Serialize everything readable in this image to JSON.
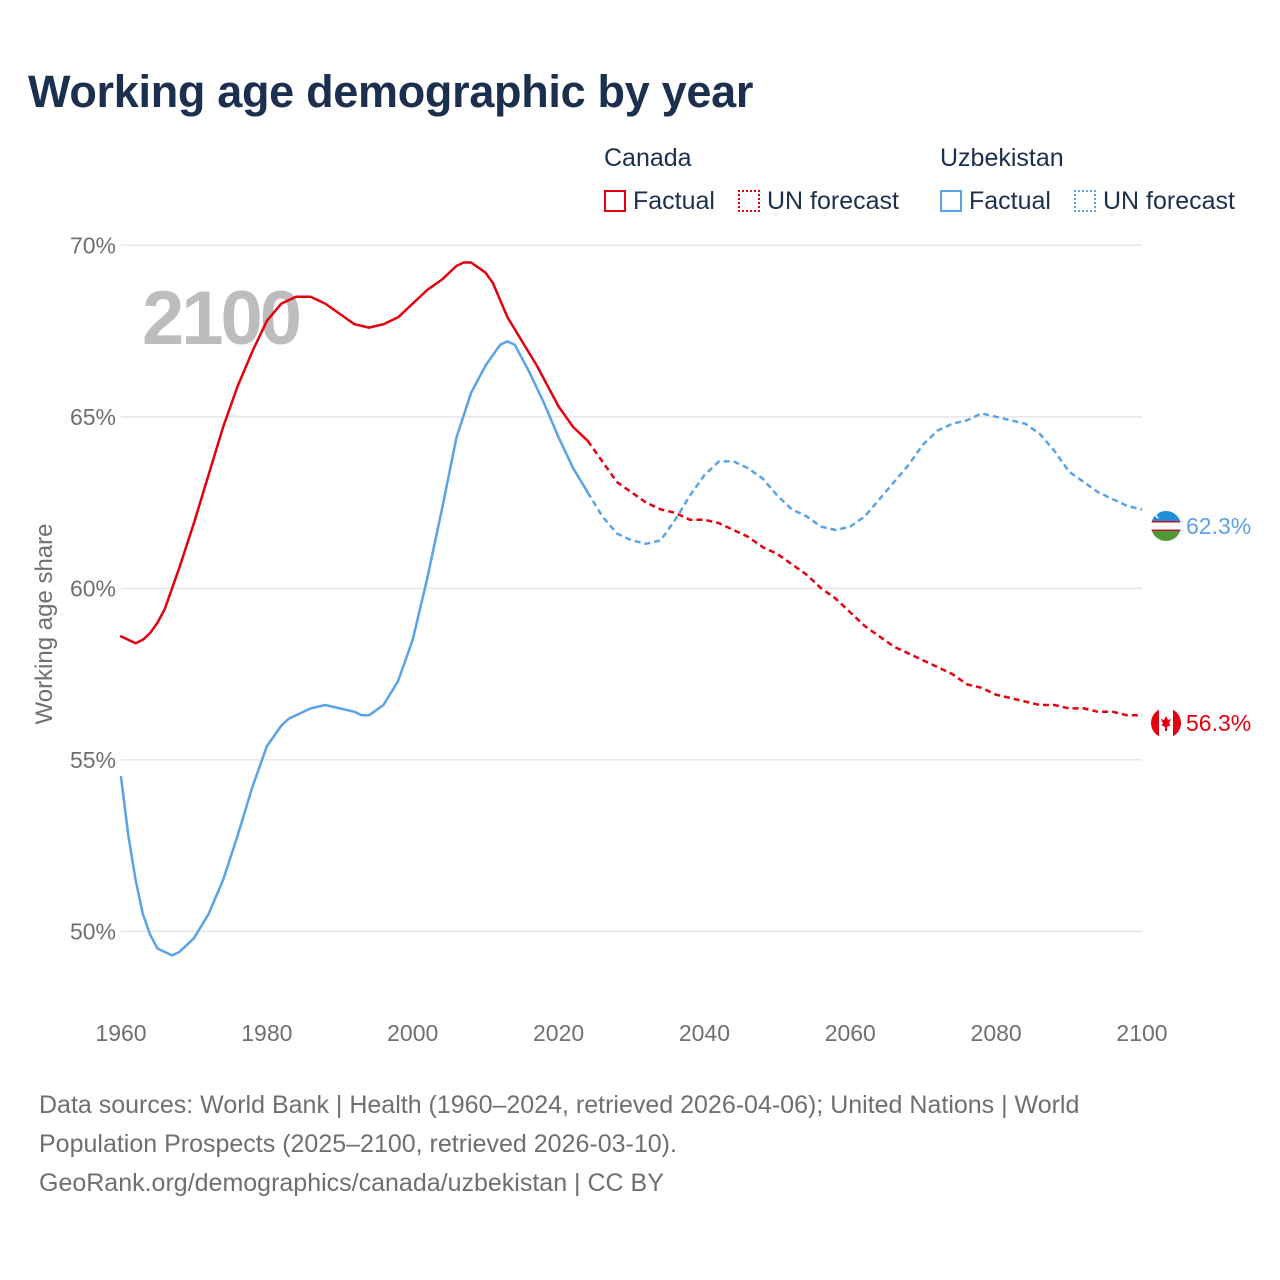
{
  "title": "Working age demographic by year",
  "legend": {
    "series": [
      {
        "country": "Canada",
        "color": "#e3000f",
        "factual_label": "Factual",
        "forecast_label": "UN forecast"
      },
      {
        "country": "Uzbekistan",
        "color": "#5ba3e6",
        "factual_label": "Factual",
        "forecast_label": "UN forecast"
      }
    ]
  },
  "year_overlay": "2100",
  "end_labels": {
    "canada": "56.3%",
    "uzbekistan": "62.3%"
  },
  "footer": {
    "line1": "Data sources: World Bank | Health (1960–2024, retrieved 2026-04-06); United Nations | World",
    "line2": "Population Prospects (2025–2100, retrieved 2026-03-10).",
    "line3": "GeoRank.org/demographics/canada/uzbekistan | CC BY"
  },
  "chart_data": {
    "type": "line",
    "title": "Working age demographic by year",
    "xlabel": "",
    "ylabel": "Working age share",
    "xlim": [
      1960,
      2100
    ],
    "ylim": [
      48,
      71
    ],
    "x_ticks": [
      1960,
      1980,
      2000,
      2020,
      2040,
      2060,
      2080,
      2100
    ],
    "y_ticks": [
      50,
      55,
      60,
      65,
      70
    ],
    "y_tick_labels": [
      "50%",
      "55%",
      "60%",
      "65%",
      "70%"
    ],
    "factual_end_year": 2024,
    "series": [
      {
        "name": "Canada",
        "color": "#e3000f",
        "x": [
          1960,
          1962,
          1963,
          1964,
          1965,
          1966,
          1968,
          1970,
          1972,
          1974,
          1976,
          1978,
          1980,
          1982,
          1984,
          1986,
          1988,
          1990,
          1992,
          1994,
          1996,
          1998,
          2000,
          2002,
          2004,
          2006,
          2007,
          2008,
          2010,
          2011,
          2013,
          2015,
          2017,
          2020,
          2022,
          2024,
          2026,
          2028,
          2030,
          2032,
          2034,
          2036,
          2038,
          2040,
          2042,
          2044,
          2046,
          2048,
          2050,
          2052,
          2054,
          2056,
          2058,
          2060,
          2062,
          2064,
          2066,
          2068,
          2070,
          2072,
          2074,
          2076,
          2078,
          2080,
          2082,
          2084,
          2086,
          2088,
          2090,
          2092,
          2094,
          2096,
          2098,
          2100
        ],
        "values": [
          58.6,
          58.4,
          58.5,
          58.7,
          59.0,
          59.4,
          60.6,
          61.9,
          63.3,
          64.7,
          65.9,
          66.9,
          67.8,
          68.3,
          68.5,
          68.5,
          68.3,
          68.0,
          67.7,
          67.6,
          67.7,
          67.9,
          68.3,
          68.7,
          69.0,
          69.4,
          69.5,
          69.5,
          69.2,
          68.9,
          67.9,
          67.2,
          66.5,
          65.3,
          64.7,
          64.3,
          63.7,
          63.1,
          62.8,
          62.5,
          62.3,
          62.2,
          62.0,
          62.0,
          61.9,
          61.7,
          61.5,
          61.2,
          61.0,
          60.7,
          60.4,
          60.0,
          59.7,
          59.3,
          58.9,
          58.6,
          58.3,
          58.1,
          57.9,
          57.7,
          57.5,
          57.2,
          57.1,
          56.9,
          56.8,
          56.7,
          56.6,
          56.6,
          56.5,
          56.5,
          56.4,
          56.4,
          56.3,
          56.3
        ]
      },
      {
        "name": "Uzbekistan",
        "color": "#5ba3e6",
        "x": [
          1960,
          1961,
          1962,
          1963,
          1964,
          1965,
          1966,
          1967,
          1968,
          1970,
          1972,
          1974,
          1976,
          1978,
          1980,
          1982,
          1983,
          1986,
          1988,
          1990,
          1992,
          1993,
          1994,
          1996,
          1998,
          2000,
          2002,
          2004,
          2006,
          2008,
          2010,
          2012,
          2013,
          2014,
          2016,
          2018,
          2020,
          2022,
          2024,
          2026,
          2028,
          2030,
          2032,
          2034,
          2036,
          2038,
          2040,
          2042,
          2044,
          2046,
          2048,
          2050,
          2052,
          2054,
          2056,
          2058,
          2060,
          2062,
          2064,
          2066,
          2068,
          2070,
          2072,
          2074,
          2076,
          2078,
          2080,
          2082,
          2084,
          2086,
          2088,
          2090,
          2092,
          2094,
          2096,
          2098,
          2100
        ],
        "values": [
          54.5,
          52.8,
          51.5,
          50.5,
          49.9,
          49.5,
          49.4,
          49.3,
          49.4,
          49.8,
          50.5,
          51.5,
          52.8,
          54.2,
          55.4,
          56.0,
          56.2,
          56.5,
          56.6,
          56.5,
          56.4,
          56.3,
          56.3,
          56.6,
          57.3,
          58.5,
          60.3,
          62.3,
          64.4,
          65.7,
          66.5,
          67.1,
          67.2,
          67.1,
          66.3,
          65.4,
          64.4,
          63.5,
          62.8,
          62.1,
          61.6,
          61.4,
          61.3,
          61.4,
          62.0,
          62.7,
          63.3,
          63.7,
          63.7,
          63.5,
          63.2,
          62.7,
          62.3,
          62.1,
          61.8,
          61.7,
          61.8,
          62.1,
          62.6,
          63.1,
          63.6,
          64.2,
          64.6,
          64.8,
          64.9,
          65.1,
          65.0,
          64.9,
          64.8,
          64.5,
          64.0,
          63.4,
          63.1,
          62.8,
          62.6,
          62.4,
          62.3
        ]
      }
    ]
  }
}
